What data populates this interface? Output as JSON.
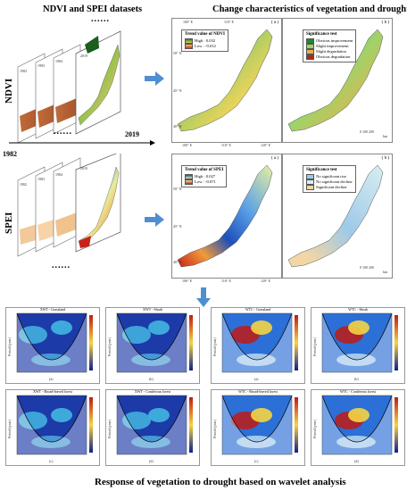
{
  "titles": {
    "left": "NDVI and SPEI datasets",
    "right": "Change characteristics of vegetation and drought",
    "bottom": "Response of vegetation to drought based on wavelet analysis"
  },
  "stacks": {
    "ndvi": {
      "label": "NDVI",
      "layer_years": [
        "1982",
        "1983",
        "1984",
        "2019"
      ],
      "dots": "......"
    },
    "spei": {
      "label": "SPEI",
      "layer_years": [
        "1982",
        "1983",
        "1984",
        "2019"
      ],
      "dots": "......"
    },
    "timeline": {
      "start": "1982",
      "end": "2019"
    }
  },
  "map_panels": {
    "ndvi_trend": {
      "tag": "( a )",
      "legend_title": "Trend value of NDVI",
      "high": "High : 0.032",
      "low": "Low : -0.012"
    },
    "ndvi_sig": {
      "tag": "( b )",
      "legend_title": "Significance test",
      "classes": [
        {
          "label": "Obvious improvement",
          "color": "#1f8a2e"
        },
        {
          "label": "Slight improvement",
          "color": "#9fd36a"
        },
        {
          "label": "Slight degradation",
          "color": "#e8b04a"
        },
        {
          "label": "Obvious degradation",
          "color": "#b0281a"
        }
      ],
      "scale": "0  100  200",
      "scale_unit": "km"
    },
    "spei_trend": {
      "tag": "( a )",
      "legend_title": "Trend value of SPEI",
      "high": "High : 0.027",
      "low": "Low : -0.071"
    },
    "spei_sig": {
      "tag": "( b )",
      "legend_title": "Significance test",
      "classes": [
        {
          "label": "No significant rise",
          "color": "#9ec9e8"
        },
        {
          "label": "No significant decline",
          "color": "#d8eef2"
        },
        {
          "label": "Significant decline",
          "color": "#f2d6a6"
        }
      ],
      "scale": "0  100  200",
      "scale_unit": "km"
    },
    "lon_ticks": [
      "100° E",
      "110° E",
      "120° E"
    ],
    "lat_ticks": [
      "50° N",
      "45° N",
      "40° N"
    ]
  },
  "wavelet": {
    "xwt": [
      "XWT - Grassland",
      "XWT - Shrub",
      "XWT - Broad-leaved forest",
      "XWT - Coniferous forest"
    ],
    "wtc": [
      "WTC - Grassland",
      "WTC - Shrub",
      "WTC - Broad-leaved forest",
      "WTC - Coniferous forest"
    ],
    "tags": [
      "(a)",
      "(b)",
      "(c)",
      "(d)"
    ],
    "ylabel": "Period (year)",
    "colors": {
      "low": "#0b1f8a",
      "mid": "#43b6e0",
      "high": "#c11a14"
    }
  }
}
